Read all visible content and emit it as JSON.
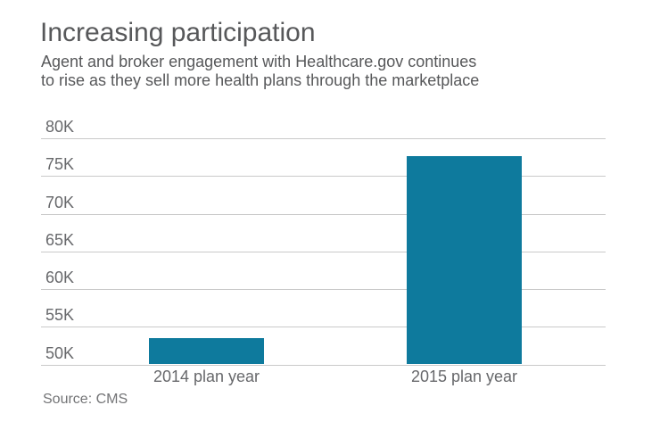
{
  "header": {
    "title": "Increasing participation",
    "subtitle_lines": [
      "Agent and broker engagement with Healthcare.gov continues",
      "to rise as they sell more health plans through the marketplace"
    ]
  },
  "footer": {
    "source": "Source: CMS"
  },
  "colors": {
    "bar": "#0e7a9d",
    "gridline": "#c9c9c9",
    "heading_text": "#57585a",
    "axis_text": "#67686b",
    "source_text": "#737476"
  },
  "chart_data": {
    "type": "bar",
    "title": "Increasing participation",
    "subtitle": "Agent and broker engagement with Healthcare.gov continues to rise as they sell more health plans through the marketplace",
    "categories": [
      "2014 plan year",
      "2015 plan year"
    ],
    "values": [
      53500,
      77600
    ],
    "xlabel": "",
    "ylabel": "",
    "ylim": [
      50000,
      80000
    ],
    "ytick_labels": [
      "80K",
      "75K",
      "70K",
      "65K",
      "60K",
      "55K",
      "50K"
    ],
    "ytick_values": [
      80000,
      75000,
      70000,
      65000,
      60000,
      55000,
      50000
    ],
    "grid": true,
    "baseline_value": 50000,
    "bar_color": "#0e7a9d",
    "source": "Source: CMS"
  }
}
